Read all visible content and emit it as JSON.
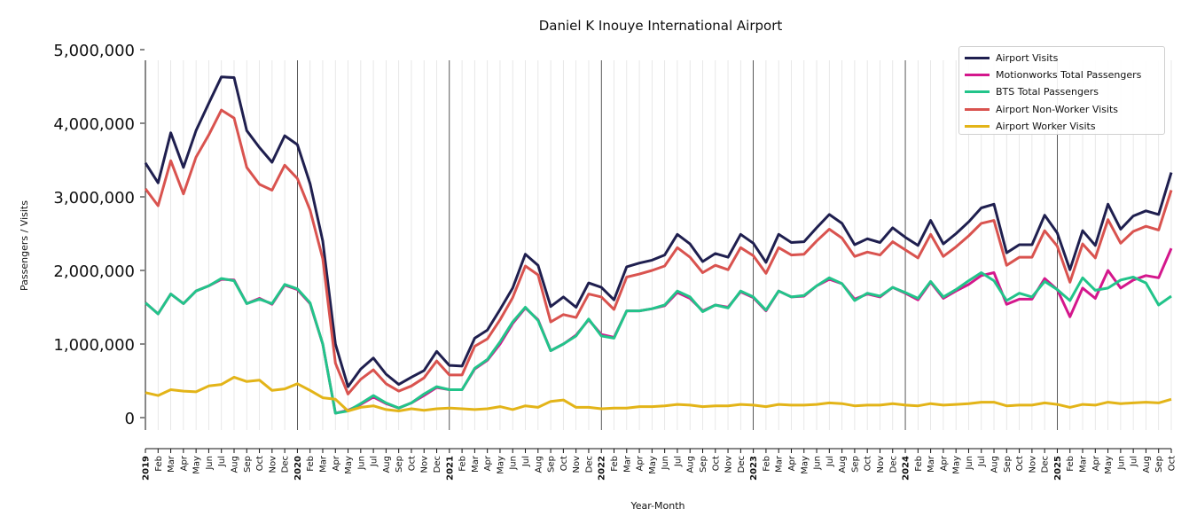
{
  "chart_data": {
    "type": "line",
    "title": "Daniel K Inouye International Airport",
    "xlabel": "Year-Month",
    "ylabel": "Passengers / Visits",
    "ylim": [
      0,
      5000000
    ],
    "yticks": [
      0,
      1000000,
      2000000,
      3000000,
      4000000,
      5000000
    ],
    "ytick_labels": [
      "0",
      "1,000,000",
      "2,000,000",
      "3,000,000",
      "4,000,000",
      "5,000,000"
    ],
    "x_start": "2019-01",
    "x_end": "2025-10",
    "years": [
      "2019",
      "2020",
      "2021",
      "2022",
      "2023",
      "2024",
      "2025"
    ],
    "month_labels": [
      "Feb",
      "Mar",
      "Apr",
      "May",
      "Jun",
      "Jul",
      "Aug",
      "Sep",
      "Oct",
      "Nov",
      "Dec"
    ],
    "grid": "vertical monthly gridlines; darker lines at each January",
    "legend_position": "top-right",
    "series": [
      {
        "name": "Airport Visits",
        "color": "#1f1f4f",
        "values": [
          3460000,
          3190000,
          3870000,
          3400000,
          3900000,
          4270000,
          4630000,
          4620000,
          3900000,
          3670000,
          3470000,
          3830000,
          3710000,
          3180000,
          2400000,
          1000000,
          420000,
          660000,
          810000,
          590000,
          450000,
          550000,
          640000,
          900000,
          710000,
          700000,
          1080000,
          1190000,
          1470000,
          1760000,
          2220000,
          2070000,
          1510000,
          1640000,
          1500000,
          1830000,
          1770000,
          1600000,
          2050000,
          2100000,
          2140000,
          2210000,
          2490000,
          2360000,
          2120000,
          2230000,
          2180000,
          2490000,
          2370000,
          2110000,
          2490000,
          2380000,
          2390000,
          2580000,
          2760000,
          2640000,
          2350000,
          2430000,
          2380000,
          2580000,
          2450000,
          2340000,
          2680000,
          2360000,
          2500000,
          2660000,
          2850000,
          2900000,
          2240000,
          2350000,
          2350000,
          2750000,
          2510000,
          2010000,
          2540000,
          2340000,
          2900000,
          2560000,
          2740000,
          2810000,
          2760000,
          3330000
        ]
      },
      {
        "name": "Motionworks Total Passengers",
        "color": "#d4178c",
        "values": [
          1560000,
          1410000,
          1680000,
          1550000,
          1720000,
          1790000,
          1880000,
          1870000,
          1550000,
          1620000,
          1540000,
          1800000,
          1740000,
          1550000,
          1000000,
          60000,
          100000,
          180000,
          280000,
          190000,
          130000,
          200000,
          300000,
          410000,
          380000,
          380000,
          660000,
          780000,
          1000000,
          1280000,
          1490000,
          1330000,
          910000,
          1000000,
          1120000,
          1330000,
          1130000,
          1090000,
          1450000,
          1450000,
          1480000,
          1520000,
          1700000,
          1620000,
          1450000,
          1530000,
          1500000,
          1710000,
          1630000,
          1450000,
          1720000,
          1640000,
          1650000,
          1790000,
          1880000,
          1820000,
          1610000,
          1680000,
          1640000,
          1770000,
          1690000,
          1600000,
          1840000,
          1620000,
          1720000,
          1810000,
          1930000,
          1970000,
          1540000,
          1610000,
          1610000,
          1890000,
          1740000,
          1370000,
          1760000,
          1620000,
          2000000,
          1760000,
          1870000,
          1930000,
          1900000,
          2300000
        ]
      },
      {
        "name": "BTS Total Passengers",
        "color": "#22c48a",
        "values": [
          1560000,
          1410000,
          1680000,
          1550000,
          1720000,
          1790000,
          1890000,
          1860000,
          1550000,
          1610000,
          1550000,
          1810000,
          1750000,
          1560000,
          1000000,
          60000,
          90000,
          190000,
          300000,
          200000,
          130000,
          200000,
          320000,
          420000,
          380000,
          380000,
          670000,
          790000,
          1030000,
          1300000,
          1500000,
          1320000,
          910000,
          1000000,
          1110000,
          1340000,
          1110000,
          1080000,
          1450000,
          1450000,
          1480000,
          1530000,
          1720000,
          1640000,
          1440000,
          1530000,
          1490000,
          1720000,
          1640000,
          1460000,
          1720000,
          1640000,
          1660000,
          1790000,
          1900000,
          1820000,
          1590000,
          1690000,
          1650000,
          1770000,
          1700000,
          1620000,
          1850000,
          1640000,
          1740000,
          1860000,
          1970000,
          1860000,
          1590000,
          1690000,
          1640000,
          1850000,
          1740000,
          1590000,
          1900000,
          1730000,
          1760000,
          1870000,
          1910000,
          1830000,
          1530000,
          1650000
        ]
      },
      {
        "name": "Airport Non-Worker Visits",
        "color": "#d9534f",
        "values": [
          3110000,
          2880000,
          3490000,
          3040000,
          3540000,
          3840000,
          4180000,
          4070000,
          3400000,
          3170000,
          3090000,
          3430000,
          3250000,
          2820000,
          2160000,
          740000,
          320000,
          520000,
          650000,
          460000,
          360000,
          430000,
          540000,
          770000,
          580000,
          580000,
          970000,
          1070000,
          1330000,
          1630000,
          2060000,
          1940000,
          1300000,
          1400000,
          1360000,
          1680000,
          1640000,
          1470000,
          1910000,
          1950000,
          2000000,
          2060000,
          2310000,
          2180000,
          1970000,
          2070000,
          2010000,
          2310000,
          2200000,
          1960000,
          2310000,
          2210000,
          2220000,
          2400000,
          2560000,
          2440000,
          2190000,
          2250000,
          2210000,
          2390000,
          2280000,
          2170000,
          2490000,
          2190000,
          2320000,
          2470000,
          2640000,
          2680000,
          2070000,
          2180000,
          2180000,
          2540000,
          2330000,
          1840000,
          2360000,
          2170000,
          2690000,
          2370000,
          2530000,
          2600000,
          2550000,
          3090000
        ]
      },
      {
        "name": "Airport Worker Visits",
        "color": "#e3b418",
        "values": [
          340000,
          300000,
          380000,
          360000,
          350000,
          430000,
          450000,
          550000,
          490000,
          510000,
          370000,
          390000,
          460000,
          370000,
          270000,
          250000,
          90000,
          140000,
          160000,
          110000,
          90000,
          120000,
          100000,
          120000,
          130000,
          120000,
          110000,
          120000,
          150000,
          110000,
          160000,
          140000,
          220000,
          240000,
          140000,
          140000,
          120000,
          130000,
          130000,
          150000,
          150000,
          160000,
          180000,
          170000,
          150000,
          160000,
          160000,
          180000,
          170000,
          150000,
          180000,
          170000,
          170000,
          180000,
          200000,
          190000,
          160000,
          170000,
          170000,
          190000,
          170000,
          160000,
          190000,
          170000,
          180000,
          190000,
          210000,
          210000,
          160000,
          170000,
          170000,
          200000,
          180000,
          140000,
          180000,
          170000,
          210000,
          190000,
          200000,
          210000,
          200000,
          250000
        ]
      }
    ]
  }
}
